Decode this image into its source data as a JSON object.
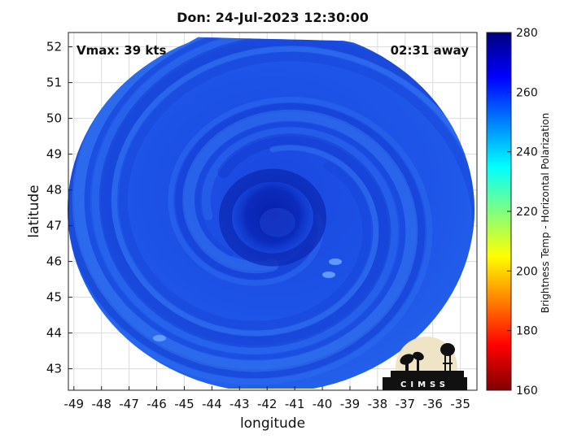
{
  "chart_data": {
    "type": "heatmap",
    "title": "Don: 24-Jul-2023 12:30:00",
    "xlabel": "longitude",
    "ylabel": "latitude",
    "xlim": [
      -49.2,
      -34.4
    ],
    "ylim": [
      42.4,
      52.4
    ],
    "x_ticks": [
      -49,
      -48,
      -47,
      -46,
      -45,
      -44,
      -43,
      -42,
      -41,
      -40,
      -39,
      -38,
      -37,
      -36,
      -35
    ],
    "y_ticks": [
      43,
      44,
      45,
      46,
      47,
      48,
      49,
      50,
      51,
      52
    ],
    "grid": true,
    "annotations": {
      "vmax": "Vmax: 39 kts",
      "time_away": "02:31 away"
    },
    "storm_center": {
      "lon": -41.8,
      "lat": 47.5
    },
    "colorbar": {
      "label": "Brightness Temp - Horizontal Polarization",
      "range": [
        160,
        280
      ],
      "ticks": [
        160,
        180,
        200,
        220,
        240,
        260,
        280
      ],
      "colormap": "jet",
      "colors": [
        "#7f0000",
        "#ff0000",
        "#ff8000",
        "#ffff00",
        "#80ff80",
        "#00ffff",
        "#0080ff",
        "#0000ff",
        "#00007f"
      ]
    }
  },
  "logo": {
    "text": "CIMSS"
  }
}
